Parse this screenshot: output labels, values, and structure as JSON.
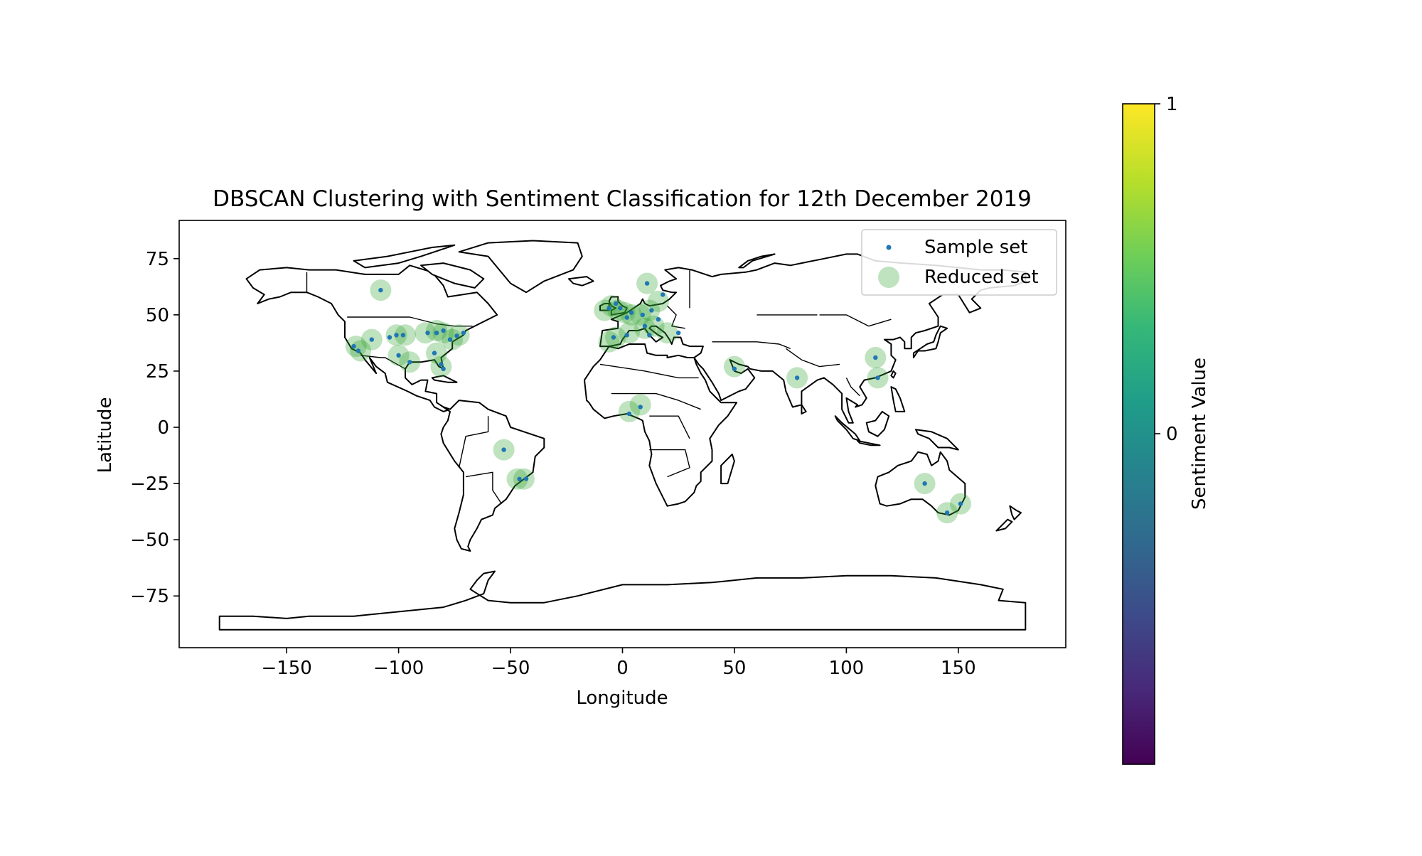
{
  "chart_data": {
    "type": "scatter",
    "title": "DBSCAN Clustering with Sentiment Classification for 12th December 2019",
    "xlabel": "Longitude",
    "ylabel": "Latitude",
    "xlim": [
      -198,
      198
    ],
    "ylim": [
      -98,
      92
    ],
    "xticks": [
      -150,
      -100,
      -50,
      0,
      50,
      100,
      150
    ],
    "xtick_labels": [
      "−150",
      "−100",
      "−50",
      "0",
      "50",
      "100",
      "150"
    ],
    "yticks": [
      75,
      50,
      25,
      0,
      -25,
      -50,
      -75
    ],
    "ytick_labels": [
      "75",
      "50",
      "25",
      "0",
      "−25",
      "−50",
      "−75"
    ],
    "grid": false,
    "legend_position": "top-right",
    "basemap": "world country boundaries",
    "series": [
      {
        "name": "Sample set",
        "marker": "small dot",
        "color": "#1f77b4",
        "points": [
          [
            -108,
            61
          ],
          [
            -120,
            36
          ],
          [
            -118,
            34
          ],
          [
            -112,
            39
          ],
          [
            -104,
            40
          ],
          [
            -101,
            41
          ],
          [
            -98,
            41
          ],
          [
            -100,
            32
          ],
          [
            -95,
            29
          ],
          [
            -87,
            42
          ],
          [
            -83,
            42
          ],
          [
            -80,
            43
          ],
          [
            -77,
            39
          ],
          [
            -74,
            40.7
          ],
          [
            -71,
            42
          ],
          [
            -84,
            33
          ],
          [
            -81,
            28
          ],
          [
            -80,
            26
          ],
          [
            -53,
            -10
          ],
          [
            -46,
            -23
          ],
          [
            -43,
            -22.9
          ],
          [
            -3,
            55
          ],
          [
            -1,
            53
          ],
          [
            -6,
            53
          ],
          [
            2,
            48.8
          ],
          [
            4,
            51
          ],
          [
            9,
            50
          ],
          [
            13,
            52
          ],
          [
            12,
            41
          ],
          [
            -4,
            40
          ],
          [
            2,
            41
          ],
          [
            10,
            45
          ],
          [
            16,
            48
          ],
          [
            18,
            59
          ],
          [
            11,
            64
          ],
          [
            25,
            42
          ],
          [
            8,
            9
          ],
          [
            3,
            6
          ],
          [
            50,
            26
          ],
          [
            78,
            22
          ],
          [
            113,
            31
          ],
          [
            114,
            22
          ],
          [
            135,
            -25
          ],
          [
            145,
            -38
          ],
          [
            151,
            -34
          ]
        ]
      },
      {
        "name": "Reduced set",
        "marker": "large translucent circle",
        "color": "#2ca02c",
        "alpha": 0.3,
        "points": [
          [
            -108,
            61
          ],
          [
            -119,
            36
          ],
          [
            -117,
            34
          ],
          [
            -112,
            39
          ],
          [
            -101,
            41
          ],
          [
            -97,
            41
          ],
          [
            -100,
            32
          ],
          [
            -95,
            29
          ],
          [
            -88,
            42
          ],
          [
            -83,
            43
          ],
          [
            -80,
            42
          ],
          [
            -76,
            39
          ],
          [
            -73,
            41
          ],
          [
            -83,
            33
          ],
          [
            -81,
            27
          ],
          [
            -53,
            -10
          ],
          [
            -47,
            -23
          ],
          [
            -44,
            -23
          ],
          [
            -8,
            52
          ],
          [
            -5,
            54
          ],
          [
            -2,
            52
          ],
          [
            1,
            51
          ],
          [
            4,
            50
          ],
          [
            8,
            50
          ],
          [
            12,
            52
          ],
          [
            -3,
            40
          ],
          [
            3,
            42
          ],
          [
            10,
            44
          ],
          [
            14,
            45
          ],
          [
            20,
            42
          ],
          [
            -6,
            38
          ],
          [
            11,
            64
          ],
          [
            16,
            56
          ],
          [
            3,
            7
          ],
          [
            8,
            10
          ],
          [
            50,
            27
          ],
          [
            78,
            22
          ],
          [
            113,
            31
          ],
          [
            114,
            22
          ],
          [
            135,
            -25
          ],
          [
            145,
            -38
          ],
          [
            151,
            -34
          ]
        ]
      }
    ],
    "colorbar": {
      "label": "Sentiment Value",
      "colormap": "viridis",
      "range": [
        -1,
        1
      ],
      "tick_labels": [
        "1",
        "0"
      ],
      "ticks": [
        1,
        0
      ]
    },
    "colormap_stops": [
      "#440154",
      "#482878",
      "#3e4989",
      "#31688e",
      "#26828e",
      "#1f9e89",
      "#35b779",
      "#6ece58",
      "#b5de2b",
      "#fde725"
    ],
    "land_outline_color": "#000000"
  }
}
